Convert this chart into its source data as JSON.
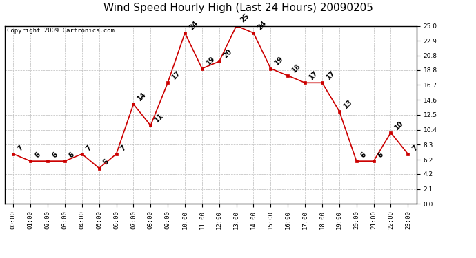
{
  "title": "Wind Speed Hourly High (Last 24 Hours) 20090205",
  "copyright": "Copyright 2009 Cartronics.com",
  "hours": [
    "00:00",
    "01:00",
    "02:00",
    "03:00",
    "04:00",
    "05:00",
    "06:00",
    "07:00",
    "08:00",
    "09:00",
    "10:00",
    "11:00",
    "12:00",
    "13:00",
    "14:00",
    "15:00",
    "16:00",
    "17:00",
    "18:00",
    "19:00",
    "20:00",
    "21:00",
    "22:00",
    "23:00"
  ],
  "values": [
    7,
    6,
    6,
    6,
    7,
    5,
    7,
    14,
    11,
    17,
    24,
    19,
    20,
    25,
    24,
    19,
    18,
    17,
    17,
    13,
    6,
    6,
    10,
    7
  ],
  "ylim": [
    0.0,
    25.0
  ],
  "yticks": [
    0.0,
    2.1,
    4.2,
    6.2,
    8.3,
    10.4,
    12.5,
    14.6,
    16.7,
    18.8,
    20.8,
    22.9,
    25.0
  ],
  "line_color": "#cc0000",
  "marker_color": "#cc0000",
  "bg_color": "#ffffff",
  "plot_bg_color": "#ffffff",
  "grid_color": "#bbbbbb",
  "title_fontsize": 11,
  "copyright_fontsize": 6.5,
  "label_fontsize": 7,
  "tick_fontsize": 6.5,
  "border_color": "#000000"
}
